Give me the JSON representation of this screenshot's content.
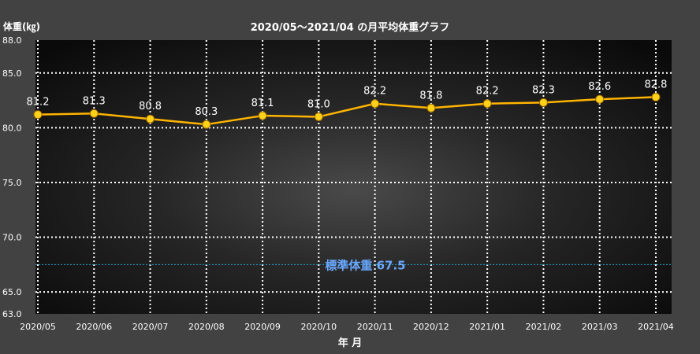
{
  "chart_data": {
    "type": "line",
    "title": "2020/05～2021/04 の月平均体重グラフ",
    "ylabel": "体重(㎏)",
    "xlabel": "年 月",
    "categories": [
      "2020/05",
      "2020/06",
      "2020/07",
      "2020/08",
      "2020/09",
      "2020/10",
      "2020/11",
      "2020/12",
      "2021/01",
      "2021/02",
      "2021/03",
      "2021/04"
    ],
    "series": [
      {
        "values": [
          81.2,
          81.3,
          80.8,
          80.3,
          81.1,
          81.0,
          82.2,
          81.8,
          82.2,
          82.3,
          82.6,
          82.8
        ],
        "data_labels": [
          "81.2",
          "81.3",
          "80.8",
          "80.3",
          "81.1",
          "81.0",
          "82.2",
          "81.8",
          "82.2",
          "82.3",
          "82.6",
          "82.8"
        ]
      }
    ],
    "ylim": [
      63.0,
      88.0
    ],
    "y_ticks": [
      63.0,
      65.0,
      70.0,
      75.0,
      80.0,
      85.0,
      88.0
    ],
    "y_tick_labels": [
      "63.0",
      "65.0",
      "70.0",
      "75.0",
      "80.0",
      "85.0",
      "88.0"
    ],
    "reference_line": {
      "label": "標準体重 67.5",
      "value": 67.5,
      "color": "#1fa8d8"
    },
    "grid": true,
    "colors": {
      "line": "#ffb400",
      "marker": "#ffd21a",
      "label": "#ffffff",
      "grid": "#ffffff",
      "reference_label": "#6aa8ff"
    }
  }
}
